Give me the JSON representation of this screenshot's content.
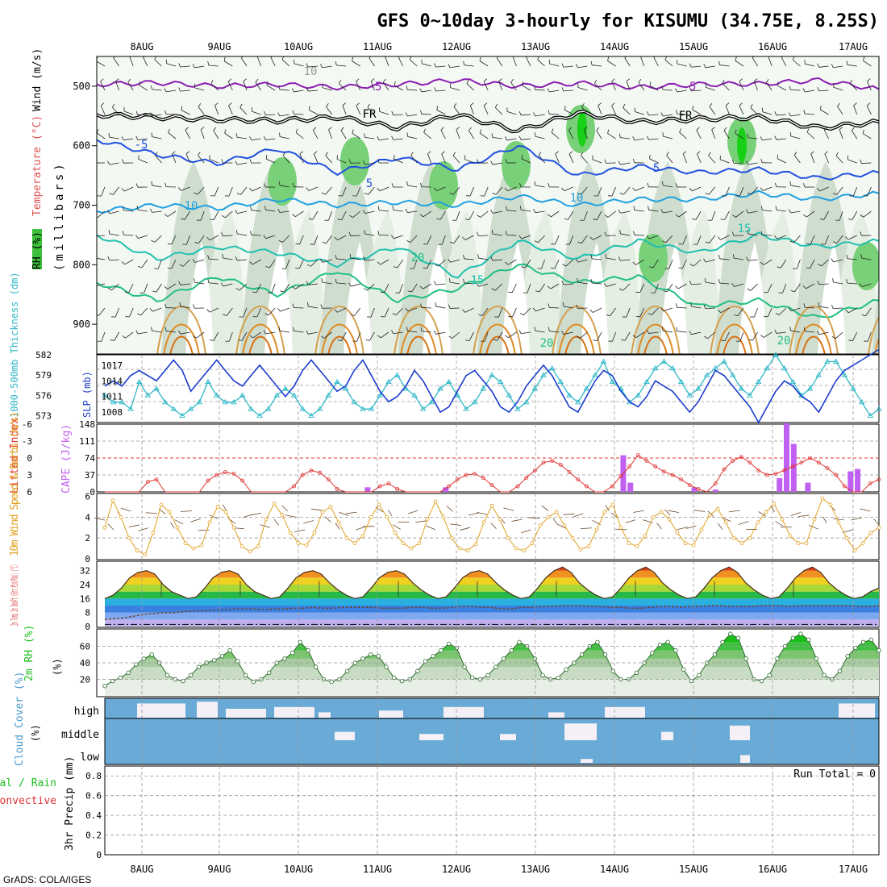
{
  "title": "GFS 0~10day 3-hourly for KISUMU (34.75E, 8.25S)",
  "footer": "GrADS: COLA/IGES",
  "dates": [
    "8AUG",
    "9AUG",
    "10AUG",
    "11AUG",
    "12AUG",
    "13AUG",
    "14AUG",
    "15AUG",
    "16AUG",
    "17AUG"
  ],
  "colors": {
    "purple": "#8a1fb0",
    "black": "#000000",
    "blue5": "#2050e0",
    "blue10": "#20a0e0",
    "teal15": "#20c0b0",
    "green20": "#20c080",
    "orange": "#e0a020",
    "cyan": "#30b8c8",
    "navy": "#1a3ccc",
    "red": "#e03030",
    "violet": "#c060f0",
    "rhGreen": "#20c020",
    "cloudBlue": "#6aaad6",
    "cloudWhite": "#f4f0f6"
  },
  "chart_data": [
    {
      "id": "upper_air",
      "type": "heatmap",
      "ylabel_parts": [
        "RH (%)",
        "Temperature (°C)",
        "Wind (m/s)"
      ],
      "yaxis_label": "(millibars)",
      "yticks": [
        "500",
        "600",
        "700",
        "800",
        "900"
      ],
      "ylim": [
        950,
        450
      ],
      "contour_labels": [
        "10",
        "-5",
        "FR",
        "-5",
        "5",
        "5",
        "10",
        "10",
        "15",
        "20",
        "15",
        "20",
        "20",
        "-5",
        "FR",
        "5"
      ],
      "isotherms": [
        {
          "name": "-5",
          "level": [
            497,
            494,
            500,
            497,
            502,
            497,
            490,
            500,
            495,
            502,
            497,
            496,
            490,
            505
          ]
        },
        {
          "name": "FR",
          "level": [
            548,
            552,
            556,
            558,
            552,
            570,
            548,
            575,
            545,
            560,
            555,
            552,
            570,
            560
          ]
        },
        {
          "name": "5",
          "level": [
            590,
            615,
            630,
            605,
            645,
            620,
            640,
            600,
            650,
            635,
            645,
            640,
            655,
            645
          ]
        },
        {
          "name": "10",
          "level": [
            710,
            700,
            705,
            690,
            700,
            695,
            700,
            685,
            700,
            690,
            690,
            680,
            690,
            680
          ]
        },
        {
          "name": "15",
          "level": [
            750,
            790,
            770,
            780,
            800,
            770,
            820,
            760,
            790,
            760,
            780,
            750,
            770,
            760
          ]
        },
        {
          "name": "20",
          "level": [
            830,
            860,
            820,
            850,
            810,
            860,
            840,
            800,
            830,
            820,
            870,
            860,
            890,
            860
          ]
        }
      ]
    },
    {
      "id": "thickness_slp",
      "type": "line",
      "ylabel_left": "1000-500mb Thickness (dm)",
      "ylabel_right": "SLP (mb)",
      "yticks_left": [
        "582",
        "579",
        "576",
        "573"
      ],
      "yticks_right": [
        "1017",
        "1014",
        "1011",
        "1008"
      ],
      "series": [
        {
          "name": "Thickness",
          "values": [
            576,
            575,
            575,
            574,
            578,
            576,
            577,
            575,
            574,
            573,
            574,
            575,
            578,
            576,
            575,
            575,
            576,
            574,
            573,
            574,
            576,
            577,
            576,
            574,
            573,
            574,
            576,
            578,
            577,
            575,
            574,
            574,
            576,
            578,
            579,
            577,
            576,
            574,
            575,
            577,
            578,
            576,
            574,
            575,
            577,
            579,
            578,
            576,
            574,
            575,
            577,
            579,
            580,
            578,
            576,
            575,
            577,
            579,
            581,
            578,
            577,
            575,
            576,
            578,
            580,
            581,
            580,
            578,
            576,
            577,
            579,
            580,
            581,
            579,
            577,
            576,
            578,
            580,
            582,
            580,
            578,
            576,
            577,
            579,
            581,
            581,
            579,
            577,
            575,
            573,
            574
          ]
        },
        {
          "name": "SLP",
          "values": [
            1013,
            1014,
            1013,
            1015,
            1016,
            1015,
            1014,
            1016,
            1018,
            1016,
            1012,
            1014,
            1016,
            1018,
            1016,
            1014,
            1013,
            1015,
            1017,
            1015,
            1013,
            1011,
            1013,
            1016,
            1018,
            1016,
            1014,
            1012,
            1013,
            1016,
            1018,
            1015,
            1012,
            1010,
            1011,
            1013,
            1016,
            1014,
            1011,
            1008,
            1009,
            1012,
            1015,
            1016,
            1014,
            1012,
            1009,
            1008,
            1010,
            1013,
            1015,
            1017,
            1015,
            1012,
            1009,
            1008,
            1011,
            1014,
            1016,
            1015,
            1012,
            1010,
            1009,
            1011,
            1014,
            1013,
            1012,
            1010,
            1008,
            1010,
            1013,
            1016,
            1015,
            1013,
            1011,
            1009,
            1006,
            1009,
            1012,
            1014,
            1013,
            1011,
            1010,
            1008,
            1011,
            1014,
            1016,
            1017,
            1018,
            1019,
            1020
          ]
        }
      ]
    },
    {
      "id": "li_cape",
      "type": "bar",
      "ylabel_left": "Lifted Index",
      "ylabel_right": "CAPE (J/kg)",
      "yticks_left": [
        "-6",
        "-3",
        "0",
        "3",
        "6"
      ],
      "yticks_right": [
        "148",
        "111",
        "74",
        "37",
        "0"
      ],
      "lifted_index": [
        6,
        6,
        6,
        6,
        6,
        4.2,
        3.8,
        6,
        6,
        6,
        6,
        6,
        4,
        3,
        2.5,
        2.8,
        4,
        6,
        6,
        6,
        6,
        6,
        5,
        3,
        2.2,
        2.6,
        3.8,
        5.5,
        6,
        6,
        6,
        6,
        5,
        4.5,
        5.5,
        6,
        6,
        6,
        6,
        6,
        5,
        3.8,
        3,
        2.8,
        3.5,
        4.8,
        6,
        6,
        5,
        3.5,
        2.2,
        0.8,
        0.5,
        1.2,
        2.5,
        3.8,
        5,
        6,
        6,
        5,
        3.2,
        1.5,
        -0.5,
        0.5,
        1.5,
        2.4,
        3,
        3.8,
        4.8,
        5.5,
        6,
        4.5,
        2,
        0.5,
        -0.2,
        0.8,
        2.2,
        3,
        2.8,
        2.2,
        1.5,
        0.8,
        0,
        0.8,
        1.8,
        3,
        5,
        6,
        6,
        4.5,
        3.8
      ],
      "cape": [
        {
          "i": 37,
          "v": 10
        },
        {
          "i": 48,
          "v": 10
        },
        {
          "i": 73,
          "v": 80
        },
        {
          "i": 74,
          "v": 20
        },
        {
          "i": 83,
          "v": 10
        },
        {
          "i": 86,
          "v": 5
        },
        {
          "i": 95,
          "v": 30
        },
        {
          "i": 96,
          "v": 150
        },
        {
          "i": 97,
          "v": 105
        },
        {
          "i": 99,
          "v": 20
        },
        {
          "i": 105,
          "v": 45
        },
        {
          "i": 106,
          "v": 50
        }
      ]
    },
    {
      "id": "wind10m",
      "type": "line",
      "ylabel": "10m Wind Speed & Barbs (m/s)",
      "yticks": [
        "6",
        "4",
        "2",
        "0"
      ],
      "series": [
        {
          "name": "Speed",
          "values": [
            3,
            5.6,
            4,
            2,
            0.8,
            0.4,
            2.5,
            5.2,
            4.5,
            3,
            1.5,
            1,
            1.3,
            3.5,
            5,
            4.5,
            3,
            1.2,
            0.7,
            1.2,
            3.8,
            5.3,
            4.2,
            2.5,
            1.5,
            1.3,
            2.5,
            4.5,
            5,
            3.5,
            2,
            1.5,
            2.2,
            4,
            5.2,
            4,
            2.5,
            1.5,
            1,
            1.5,
            3.8,
            5.5,
            4,
            2,
            1,
            0.8,
            1.4,
            3.5,
            5.1,
            3.8,
            2,
            1,
            0.8,
            1.5,
            3.2,
            4,
            4.5,
            3.2,
            2,
            0.9,
            1.2,
            2.8,
            4.5,
            5.2,
            3,
            1.5,
            1.2,
            2.2,
            4,
            4.5,
            3.8,
            2.5,
            1.5,
            1.3,
            2.8,
            4.2,
            4.8,
            3.5,
            2,
            1.5,
            2,
            3.5,
            4.5,
            5.3,
            3.8,
            2.2,
            1.5,
            1.5,
            3.8,
            5.8,
            5.2,
            3.5,
            2,
            0.8,
            1.5,
            2.5,
            3
          ]
        }
      ]
    },
    {
      "id": "temp2m",
      "type": "area",
      "ylabel": "2m Temp 2m DewPt (6hr Min/Max) (°C)",
      "yticks": [
        "32",
        "24",
        "16",
        "8",
        "0"
      ],
      "temperature": [
        16,
        18,
        22,
        28,
        31,
        32,
        30,
        24,
        20,
        18,
        16,
        17,
        22,
        28,
        31,
        32,
        30,
        24,
        20,
        18,
        16,
        17,
        22,
        28,
        31,
        32,
        30,
        25,
        21,
        18,
        16,
        17,
        22,
        28,
        31,
        32,
        30,
        25,
        21,
        18,
        16,
        17,
        22,
        28,
        31,
        32,
        30,
        25,
        21,
        18,
        16,
        17,
        22,
        28,
        32,
        34,
        31,
        25,
        21,
        18,
        16,
        17,
        22,
        28,
        32,
        34,
        31,
        25,
        21,
        18,
        16,
        17,
        22,
        28,
        32,
        34,
        31,
        25,
        21,
        18,
        16,
        17,
        22,
        28,
        32,
        34,
        31,
        25,
        21,
        18,
        16,
        17,
        20,
        22
      ],
      "dewpoint": [
        4,
        4.5,
        5,
        6,
        7,
        7.5,
        8,
        8,
        8.5,
        9,
        9,
        9.5,
        9.5,
        10,
        10,
        10,
        9.8,
        10,
        10,
        10.5,
        10.5,
        11,
        10.5,
        10.5,
        11,
        11,
        11,
        11,
        10.5,
        10.5,
        10.5,
        11,
        11,
        10.5,
        10.5,
        11,
        11.5,
        11.5,
        11,
        11,
        10,
        10,
        11,
        11,
        11.5,
        11.5,
        12,
        12,
        12,
        11.5,
        11.5,
        11,
        11,
        10.5,
        10.5,
        11,
        11.5,
        11.5,
        11,
        11.5,
        11.5,
        12,
        12,
        11.5,
        11.5,
        11.5,
        12,
        12,
        12,
        11.5,
        12,
        12,
        12,
        12,
        12,
        12,
        11.5,
        11.5,
        12
      ]
    },
    {
      "id": "rh2m",
      "type": "area",
      "ylabel": "2m RH (%)",
      "yticks": [
        "60",
        "40",
        "20"
      ],
      "values": [
        12,
        18,
        22,
        28,
        38,
        45,
        50,
        40,
        25,
        20,
        18,
        25,
        35,
        40,
        43,
        48,
        55,
        42,
        25,
        17,
        20,
        28,
        40,
        45,
        52,
        65,
        55,
        35,
        20,
        17,
        20,
        30,
        40,
        45,
        50,
        48,
        35,
        22,
        18,
        20,
        30,
        42,
        48,
        55,
        63,
        58,
        35,
        22,
        20,
        25,
        35,
        45,
        55,
        65,
        60,
        45,
        25,
        20,
        22,
        32,
        40,
        50,
        60,
        65,
        50,
        30,
        20,
        20,
        28,
        40,
        52,
        62,
        65,
        55,
        32,
        18,
        25,
        40,
        50,
        65,
        75,
        70,
        45,
        20,
        18,
        25,
        45,
        60,
        70,
        75,
        68,
        45,
        25,
        20,
        30,
        48,
        58,
        65,
        68,
        55
      ]
    },
    {
      "id": "cloud_cover",
      "type": "heatmap",
      "ylabel": "Cloud Cover (%)",
      "rows": [
        "high",
        "middle",
        "low"
      ]
    },
    {
      "id": "precip",
      "type": "bar",
      "ylabel": "3hr Precip (mm)",
      "ylabel_left_parts": [
        "Total / Rain",
        "Convective"
      ],
      "yticks": [
        "0.8",
        "0.6",
        "0.4",
        "0.2",
        "0"
      ],
      "annotation": "Run Total = 0",
      "values": []
    }
  ]
}
